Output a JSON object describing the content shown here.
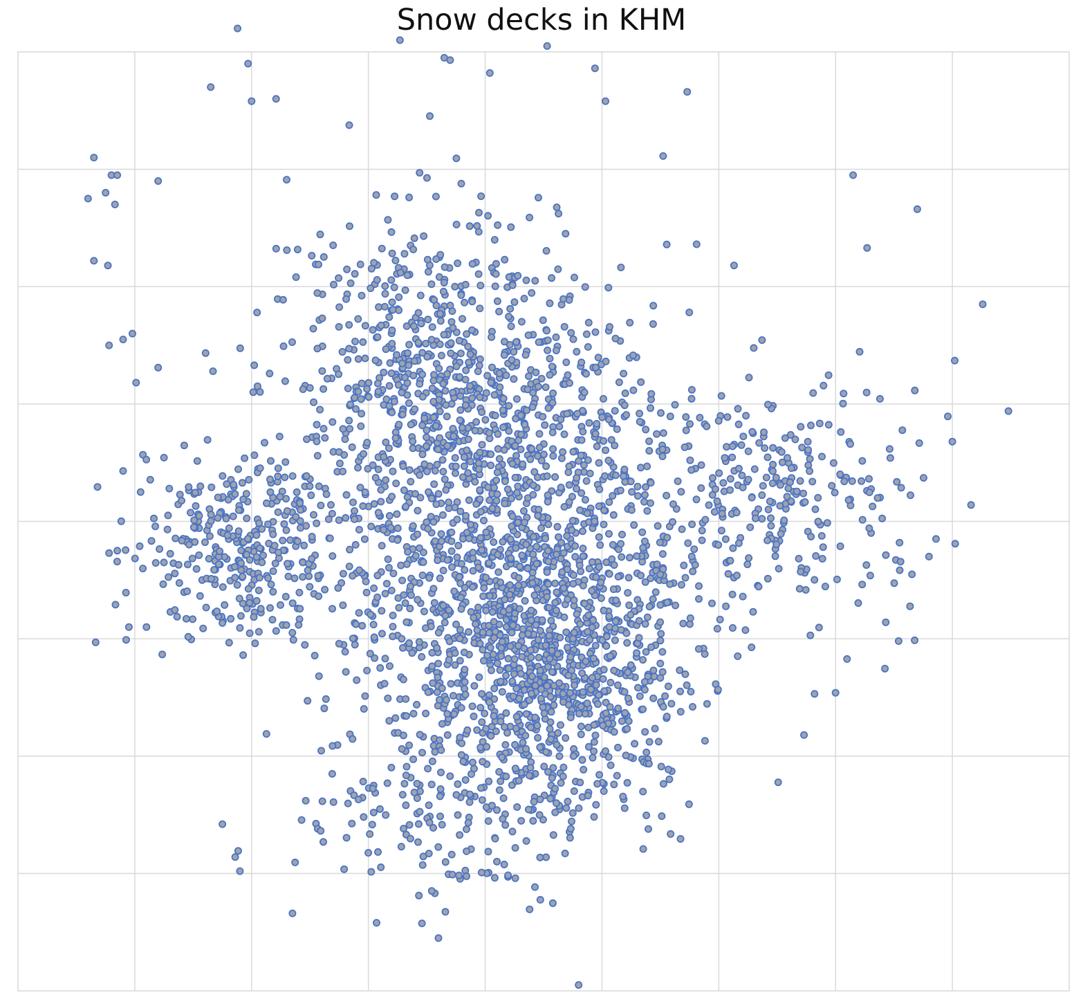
{
  "chart_data": {
    "type": "scatter",
    "title": "Snow decks in KHM",
    "xlabel": "",
    "ylabel": "",
    "xlim": [
      0,
      9
    ],
    "ylim": [
      0,
      8
    ],
    "grid": true,
    "legend": "none",
    "x_tick_labels": [],
    "y_tick_labels": [],
    "marker_fill": "#9ea3ad",
    "marker_edge": "#4a73c6",
    "gridline_color": "#d9d9d9",
    "series": [
      {
        "point_count": 3200,
        "seed": 20240607,
        "blobs": [
          {
            "cx": 4.2,
            "cy": 3.8,
            "sx": 1.35,
            "sy": 1.55,
            "weight": 0.42
          },
          {
            "cx": 4.6,
            "cy": 2.7,
            "sx": 0.9,
            "sy": 0.95,
            "weight": 0.18
          },
          {
            "cx": 3.6,
            "cy": 5.3,
            "sx": 1.1,
            "sy": 1.1,
            "weight": 0.18
          },
          {
            "cx": 1.9,
            "cy": 3.8,
            "sx": 0.75,
            "sy": 0.65,
            "weight": 0.1
          },
          {
            "cx": 6.5,
            "cy": 4.2,
            "sx": 0.9,
            "sy": 0.75,
            "weight": 0.08
          },
          {
            "cx": 3.7,
            "cy": 1.5,
            "sx": 1.0,
            "sy": 0.55,
            "weight": 0.04
          }
        ],
        "extra_points": [
          [
            0.65,
            7.1
          ],
          [
            0.8,
            6.95
          ],
          [
            0.85,
            6.95
          ],
          [
            0.75,
            6.8
          ],
          [
            0.6,
            6.75
          ],
          [
            0.83,
            6.7
          ],
          [
            0.65,
            6.22
          ],
          [
            0.77,
            6.18
          ],
          [
            0.78,
            5.5
          ],
          [
            0.9,
            5.55
          ],
          [
            0.98,
            5.6
          ],
          [
            1.2,
            6.9
          ],
          [
            1.2,
            5.31
          ],
          [
            1.65,
            7.7
          ],
          [
            1.97,
            7.9
          ],
          [
            2.0,
            7.58
          ],
          [
            1.88,
            8.2
          ],
          [
            2.21,
            7.6
          ],
          [
            3.27,
            8.1
          ],
          [
            3.65,
            7.95
          ],
          [
            3.7,
            7.93
          ],
          [
            4.53,
            8.05
          ],
          [
            4.94,
            7.86
          ],
          [
            4.04,
            7.82
          ],
          [
            5.03,
            7.58
          ],
          [
            5.73,
            7.66
          ],
          [
            7.15,
            6.95
          ],
          [
            7.7,
            6.66
          ],
          [
            7.27,
            6.33
          ],
          [
            8.02,
            5.37
          ],
          [
            8.26,
            5.85
          ],
          [
            8.48,
            4.94
          ],
          [
            8.0,
            4.68
          ],
          [
            8.16,
            4.14
          ],
          [
            7.86,
            3.85
          ],
          [
            7.8,
            3.7
          ],
          [
            7.43,
            3.14
          ],
          [
            7.54,
            2.98
          ],
          [
            7.0,
            2.54
          ],
          [
            6.73,
            2.18
          ],
          [
            6.82,
            2.53
          ],
          [
            5.88,
            2.87
          ],
          [
            4.8,
            0.05
          ],
          [
            3.6,
            0.45
          ],
          [
            2.35,
            0.66
          ],
          [
            3.07,
            0.58
          ],
          [
            1.9,
            1.02
          ],
          [
            1.86,
            1.14
          ],
          [
            1.75,
            1.42
          ],
          [
            1.1,
            3.1
          ],
          [
            0.9,
            4.43
          ],
          [
            0.85,
            3.75
          ],
          [
            0.78,
            3.73
          ],
          [
            0.95,
            3.1
          ],
          [
            1.05,
            4.25
          ]
        ]
      }
    ]
  }
}
